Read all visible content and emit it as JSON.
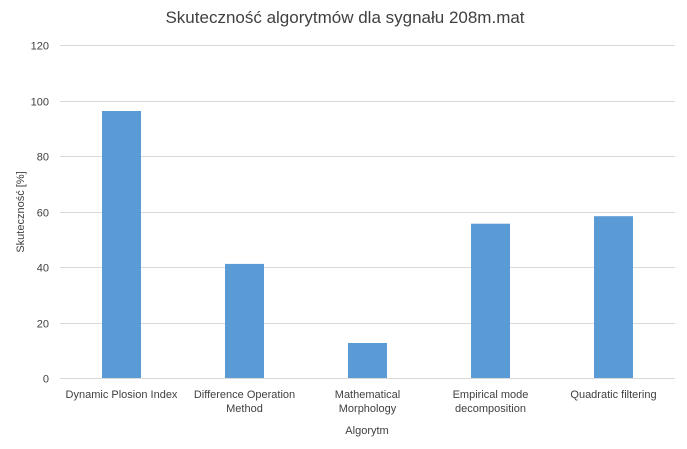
{
  "chart_data": {
    "type": "bar",
    "title": "Skuteczność algorytmów dla sygnału 208m.mat",
    "xlabel": "Algorytm",
    "ylabel": "Skuteczność [%]",
    "ylim": [
      0,
      120
    ],
    "yticks": [
      0,
      20,
      40,
      60,
      80,
      100,
      120
    ],
    "grid": true,
    "categories": [
      [
        "Dynamic Plosion Index"
      ],
      [
        "Difference Operation",
        "Method"
      ],
      [
        "Mathematical",
        "Morphology"
      ],
      [
        "Empirical mode",
        "decomposition"
      ],
      [
        "Quadratic filtering"
      ]
    ],
    "values": [
      96.2,
      41.1,
      12.6,
      55.6,
      58.3
    ],
    "bar_color": "#5b9bd5"
  }
}
